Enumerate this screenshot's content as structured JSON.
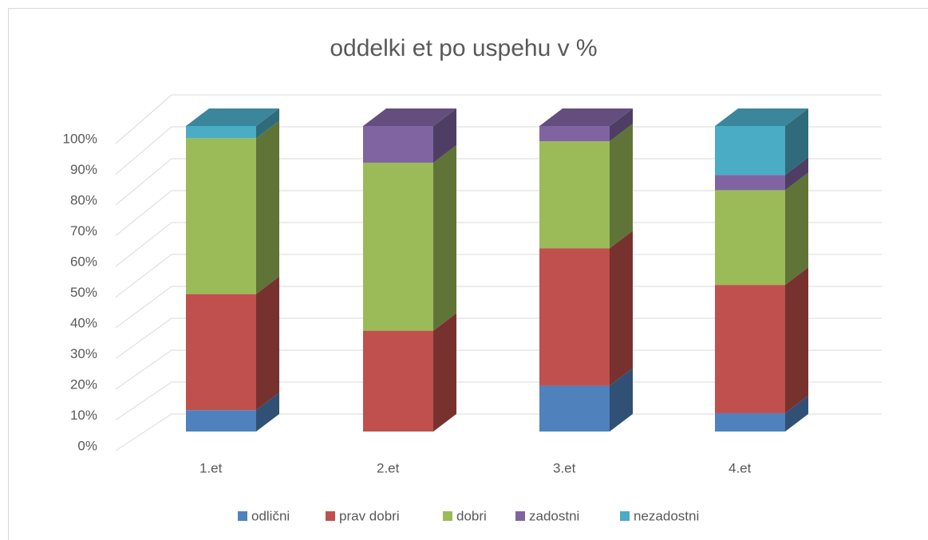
{
  "chart_data": {
    "type": "bar3d_stacked",
    "title": "oddelki et po uspehu v %",
    "categories": [
      "1.et",
      "2.et",
      "3.et",
      "4.et"
    ],
    "series": [
      {
        "name": "odlični",
        "color": "#4f81bd",
        "values": [
          7,
          0,
          15,
          6
        ]
      },
      {
        "name": "prav dobri",
        "color": "#c0504d",
        "values": [
          38,
          33,
          45,
          42
        ]
      },
      {
        "name": "dobri",
        "color": "#9bbb59",
        "values": [
          51,
          55,
          35,
          31
        ]
      },
      {
        "name": "zadostni",
        "color": "#8064a2",
        "values": [
          0,
          12,
          5,
          5
        ]
      },
      {
        "name": "nezadostni",
        "color": "#4bacc6",
        "values": [
          4,
          0,
          0,
          16
        ]
      }
    ],
    "ylim": [
      0,
      100
    ],
    "yticks": [
      {
        "value": 0,
        "label": "0%"
      },
      {
        "value": 10,
        "label": "10%"
      },
      {
        "value": 20,
        "label": "20%"
      },
      {
        "value": 30,
        "label": "30%"
      },
      {
        "value": 40,
        "label": "40%"
      },
      {
        "value": 50,
        "label": "50%"
      },
      {
        "value": 60,
        "label": "60%"
      },
      {
        "value": 70,
        "label": "70%"
      },
      {
        "value": 80,
        "label": "80%"
      },
      {
        "value": 90,
        "label": "90%"
      },
      {
        "value": 100,
        "label": "100%"
      }
    ],
    "grid": true,
    "legend": "bottom"
  }
}
